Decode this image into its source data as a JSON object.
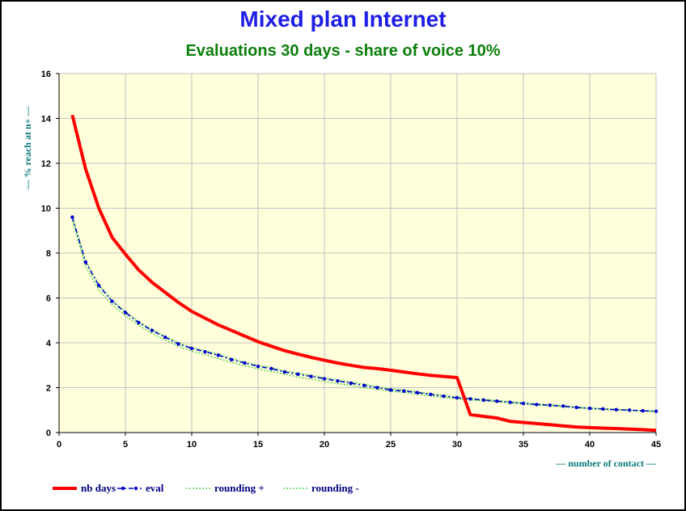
{
  "chart_data": {
    "type": "line",
    "title": "Mixed plan Internet",
    "subtitle": "Evaluations 30 days - share of voice 10%",
    "xlabel": "— number of contact —",
    "ylabel": "— % reach at n+ —",
    "xlim": [
      0,
      45
    ],
    "ylim": [
      0,
      16
    ],
    "xticks": [
      0,
      5,
      10,
      15,
      20,
      25,
      30,
      35,
      40,
      45
    ],
    "yticks": [
      0,
      2,
      4,
      6,
      8,
      10,
      12,
      14,
      16
    ],
    "grid": true,
    "plot_background": "#ffffdc",
    "legend_position": "bottom-left",
    "series": [
      {
        "name": "nb days",
        "color": "#ff0000",
        "style": "solid-thick",
        "x": [
          1,
          2,
          3,
          4,
          5,
          6,
          7,
          8,
          9,
          10,
          11,
          12,
          13,
          14,
          15,
          16,
          17,
          18,
          19,
          20,
          21,
          22,
          23,
          24,
          25,
          26,
          27,
          28,
          29,
          30,
          31,
          32,
          33,
          34,
          35,
          36,
          37,
          38,
          39,
          40,
          41,
          42,
          43,
          44,
          45
        ],
        "y": [
          14.15,
          11.75,
          10.0,
          8.7,
          7.95,
          7.25,
          6.7,
          6.25,
          5.8,
          5.4,
          5.1,
          4.8,
          4.55,
          4.3,
          4.05,
          3.85,
          3.65,
          3.5,
          3.35,
          3.22,
          3.1,
          3.0,
          2.9,
          2.85,
          2.78,
          2.7,
          2.62,
          2.55,
          2.5,
          2.45,
          0.8,
          0.72,
          0.65,
          0.5,
          0.45,
          0.4,
          0.35,
          0.3,
          0.25,
          0.22,
          0.2,
          0.18,
          0.15,
          0.13,
          0.1
        ]
      },
      {
        "name": "eval",
        "color": "#0000cc",
        "style": "dash-dot-markers",
        "x": [
          1,
          2,
          3,
          4,
          5,
          6,
          7,
          8,
          9,
          10,
          11,
          12,
          13,
          14,
          15,
          16,
          17,
          18,
          19,
          20,
          21,
          22,
          23,
          24,
          25,
          26,
          27,
          28,
          29,
          30,
          31,
          32,
          33,
          34,
          35,
          36,
          37,
          38,
          39,
          40,
          41,
          42,
          43,
          44,
          45
        ],
        "y": [
          9.6,
          7.6,
          6.55,
          5.85,
          5.35,
          4.9,
          4.55,
          4.25,
          3.95,
          3.75,
          3.6,
          3.45,
          3.25,
          3.1,
          2.95,
          2.85,
          2.7,
          2.6,
          2.5,
          2.4,
          2.3,
          2.2,
          2.1,
          2.0,
          1.9,
          1.85,
          1.78,
          1.7,
          1.62,
          1.55,
          1.5,
          1.45,
          1.4,
          1.35,
          1.3,
          1.25,
          1.22,
          1.18,
          1.12,
          1.08,
          1.05,
          1.02,
          1.0,
          0.97,
          0.95
        ]
      },
      {
        "name": "rounding +",
        "color": "#33cc33",
        "style": "dotted",
        "x": [
          1,
          2,
          3,
          4,
          5,
          6,
          7,
          8,
          9,
          10,
          11,
          12,
          13,
          14,
          15,
          16,
          17,
          18,
          19,
          20,
          21,
          22,
          23,
          24,
          25,
          26,
          27,
          28,
          29,
          30,
          31,
          32,
          33,
          34,
          35,
          36,
          37,
          38,
          39,
          40,
          41,
          42,
          43,
          44,
          45
        ],
        "y": [
          9.65,
          7.65,
          6.6,
          5.9,
          5.4,
          4.95,
          4.6,
          4.3,
          4.0,
          3.8,
          3.65,
          3.5,
          3.3,
          3.15,
          3.0,
          2.9,
          2.75,
          2.65,
          2.55,
          2.45,
          2.35,
          2.25,
          2.15,
          2.05,
          1.95,
          1.9,
          1.82,
          1.74,
          1.66,
          1.58,
          1.53,
          1.48,
          1.43,
          1.38,
          1.33,
          1.28,
          1.24,
          1.2,
          1.14,
          1.1,
          1.07,
          1.04,
          1.01,
          0.98,
          0.96
        ]
      },
      {
        "name": "rounding -",
        "color": "#33cc33",
        "style": "dotted",
        "x": [
          1,
          2,
          3,
          4,
          5,
          6,
          7,
          8,
          9,
          10,
          11,
          12,
          13,
          14,
          15,
          16,
          17,
          18,
          19,
          20,
          21,
          22,
          23,
          24,
          25,
          26,
          27,
          28,
          29,
          30,
          31,
          32,
          33,
          34,
          35,
          36,
          37,
          38,
          39,
          40,
          41,
          42,
          43,
          44,
          45
        ],
        "y": [
          9.45,
          7.4,
          6.35,
          5.7,
          5.2,
          4.78,
          4.42,
          4.12,
          3.85,
          3.62,
          3.48,
          3.3,
          3.12,
          2.98,
          2.84,
          2.72,
          2.6,
          2.48,
          2.38,
          2.28,
          2.18,
          2.1,
          2.0,
          1.92,
          1.84,
          1.78,
          1.7,
          1.64,
          1.56,
          1.5,
          1.46,
          1.41,
          1.37,
          1.32,
          1.27,
          1.23,
          1.19,
          1.15,
          1.1,
          1.06,
          1.03,
          1.0,
          0.98,
          0.95,
          0.93
        ]
      }
    ]
  }
}
